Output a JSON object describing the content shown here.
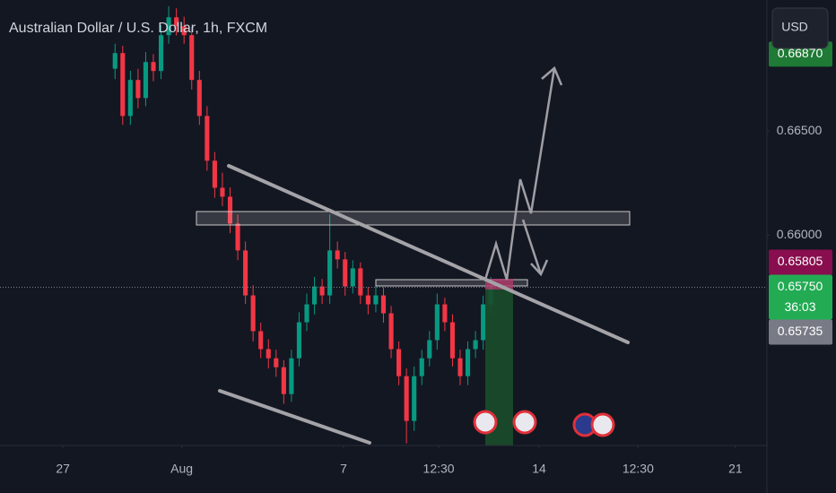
{
  "chart_data": {
    "type": "candlestick",
    "title": "Australian Dollar / U.S. Dollar, 1h, FXCM",
    "currency": "USD",
    "up_color": "#089981",
    "down_color": "#f23645",
    "xlim": [
      0,
      100
    ],
    "xticks": [
      {
        "value": 8.2,
        "label": "27"
      },
      {
        "value": 23.7,
        "label": "Aug"
      },
      {
        "value": 44.8,
        "label": "7"
      },
      {
        "value": 57.2,
        "label": "12:30"
      },
      {
        "value": 70.3,
        "label": "14"
      },
      {
        "value": 83.2,
        "label": "12:30"
      },
      {
        "value": 95.9,
        "label": "21"
      }
    ],
    "ylim": [
      0.6499,
      0.6713
    ],
    "yticks": [
      {
        "value": 0.665,
        "label": "0.66500"
      },
      {
        "value": 0.66,
        "label": "0.66000"
      }
    ],
    "x": [
      15,
      16,
      17,
      18,
      19,
      20,
      21,
      22,
      23,
      24,
      25,
      26,
      27,
      28,
      29,
      30,
      31,
      32,
      33,
      34,
      35,
      36,
      37,
      38,
      39,
      40,
      41,
      42,
      43,
      44,
      45,
      46,
      47,
      48,
      49,
      50,
      51,
      52,
      53,
      54,
      55,
      56,
      57,
      58,
      59,
      60,
      61,
      62,
      63,
      64
    ],
    "open": [
      0.668,
      0.66875,
      0.66573,
      0.66746,
      0.66659,
      0.66832,
      0.66789,
      0.66961,
      0.67047,
      0.67004,
      0.66961,
      0.66746,
      0.66573,
      0.66358,
      0.66228,
      0.66185,
      0.66056,
      0.65927,
      0.65711,
      0.65539,
      0.65453,
      0.65409,
      0.65366,
      0.65237,
      0.65409,
      0.65582,
      0.65668,
      0.65754,
      0.65711,
      0.65927,
      0.65884,
      0.65754,
      0.65841,
      0.65711,
      0.65668,
      0.65711,
      0.65625,
      0.65453,
      0.65323,
      0.65108,
      0.65323,
      0.65409,
      0.65496,
      0.65668,
      0.65582,
      0.65409,
      0.65323,
      0.65453,
      0.65496,
      0.65668
    ],
    "high": [
      0.6692,
      0.6691,
      0.6679,
      0.668,
      0.6688,
      0.6687,
      0.6701,
      0.671,
      0.6709,
      0.6705,
      0.67,
      0.6679,
      0.6662,
      0.664,
      0.663,
      0.6623,
      0.661,
      0.6597,
      0.6576,
      0.6558,
      0.655,
      0.6545,
      0.654,
      0.6545,
      0.6563,
      0.6572,
      0.658,
      0.6579,
      0.661,
      0.6597,
      0.6592,
      0.6588,
      0.6587,
      0.6575,
      0.6576,
      0.6575,
      0.6566,
      0.6549,
      0.6536,
      0.6537,
      0.6545,
      0.6554,
      0.6572,
      0.657,
      0.6562,
      0.6545,
      0.6549,
      0.6554,
      0.6571,
      0.658
    ],
    "low": [
      0.6675,
      0.6653,
      0.6653,
      0.6661,
      0.6662,
      0.6674,
      0.6675,
      0.6692,
      0.6696,
      0.6692,
      0.667,
      0.6653,
      0.6631,
      0.6618,
      0.6614,
      0.6601,
      0.6588,
      0.6567,
      0.6549,
      0.6541,
      0.6536,
      0.6532,
      0.6519,
      0.652,
      0.6537,
      0.6554,
      0.6562,
      0.6567,
      0.6567,
      0.6584,
      0.6571,
      0.6572,
      0.6567,
      0.6562,
      0.6563,
      0.6558,
      0.6541,
      0.6528,
      0.65,
      0.6506,
      0.6528,
      0.6537,
      0.6545,
      0.6554,
      0.6537,
      0.6528,
      0.6528,
      0.6541,
      0.6545,
      0.6562
    ],
    "close": [
      0.66875,
      0.66573,
      0.66746,
      0.66659,
      0.66832,
      0.66789,
      0.66961,
      0.67047,
      0.67004,
      0.66961,
      0.66746,
      0.66573,
      0.66358,
      0.66228,
      0.66185,
      0.66056,
      0.65927,
      0.65711,
      0.65539,
      0.65453,
      0.65409,
      0.65366,
      0.65237,
      0.65409,
      0.65582,
      0.65668,
      0.65754,
      0.65711,
      0.65927,
      0.65884,
      0.65754,
      0.65841,
      0.65711,
      0.65668,
      0.65711,
      0.65625,
      0.65453,
      0.65323,
      0.65108,
      0.65323,
      0.65409,
      0.65496,
      0.65668,
      0.65582,
      0.65409,
      0.65323,
      0.65453,
      0.65496,
      0.65668,
      0.6575
    ],
    "price_labels": [
      {
        "value": 0.6687,
        "label": "0.66870",
        "color": "#1e7a34"
      },
      {
        "value": 0.65805,
        "label": "0.65805",
        "color": "#880e4f"
      },
      {
        "value": 0.6575,
        "label": "0.65750",
        "color": "#22ab53"
      },
      {
        "value": 0.65735,
        "label": "0.65735",
        "color": "#787b86"
      }
    ],
    "countdown": "36:03"
  }
}
